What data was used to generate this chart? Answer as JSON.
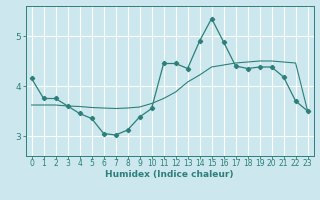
{
  "xlabel": "Humidex (Indice chaleur)",
  "background_color": "#cce8ee",
  "line_color": "#2d7f7a",
  "grid_color": "#ffffff",
  "xlim": [
    -0.5,
    23.5
  ],
  "ylim": [
    2.6,
    5.6
  ],
  "yticks": [
    3,
    4,
    5
  ],
  "xticks": [
    0,
    1,
    2,
    3,
    4,
    5,
    6,
    7,
    8,
    9,
    10,
    11,
    12,
    13,
    14,
    15,
    16,
    17,
    18,
    19,
    20,
    21,
    22,
    23
  ],
  "wavy_x": [
    0,
    1,
    2,
    3,
    4,
    5,
    6,
    7,
    8,
    9,
    10,
    11,
    12,
    13,
    14,
    15,
    16,
    17,
    18,
    19,
    20,
    21,
    22,
    23
  ],
  "wavy_y": [
    4.15,
    3.75,
    3.75,
    3.6,
    3.45,
    3.35,
    3.05,
    3.02,
    3.12,
    3.38,
    3.55,
    4.45,
    4.45,
    4.35,
    4.9,
    5.35,
    4.88,
    4.4,
    4.35,
    4.38,
    4.38,
    4.18,
    3.7,
    3.5
  ],
  "trend_x": [
    0,
    1,
    2,
    3,
    4,
    5,
    6,
    7,
    8,
    9,
    10,
    11,
    12,
    13,
    14,
    15,
    16,
    17,
    18,
    19,
    20,
    21,
    22,
    23
  ],
  "trend_y": [
    3.62,
    3.62,
    3.62,
    3.6,
    3.59,
    3.57,
    3.56,
    3.55,
    3.56,
    3.58,
    3.65,
    3.75,
    3.88,
    4.08,
    4.22,
    4.38,
    4.42,
    4.46,
    4.48,
    4.5,
    4.5,
    4.48,
    4.46,
    3.5
  ],
  "xlabel_fontsize": 6.5,
  "tick_fontsize": 5.5,
  "ytick_fontsize": 6.5
}
